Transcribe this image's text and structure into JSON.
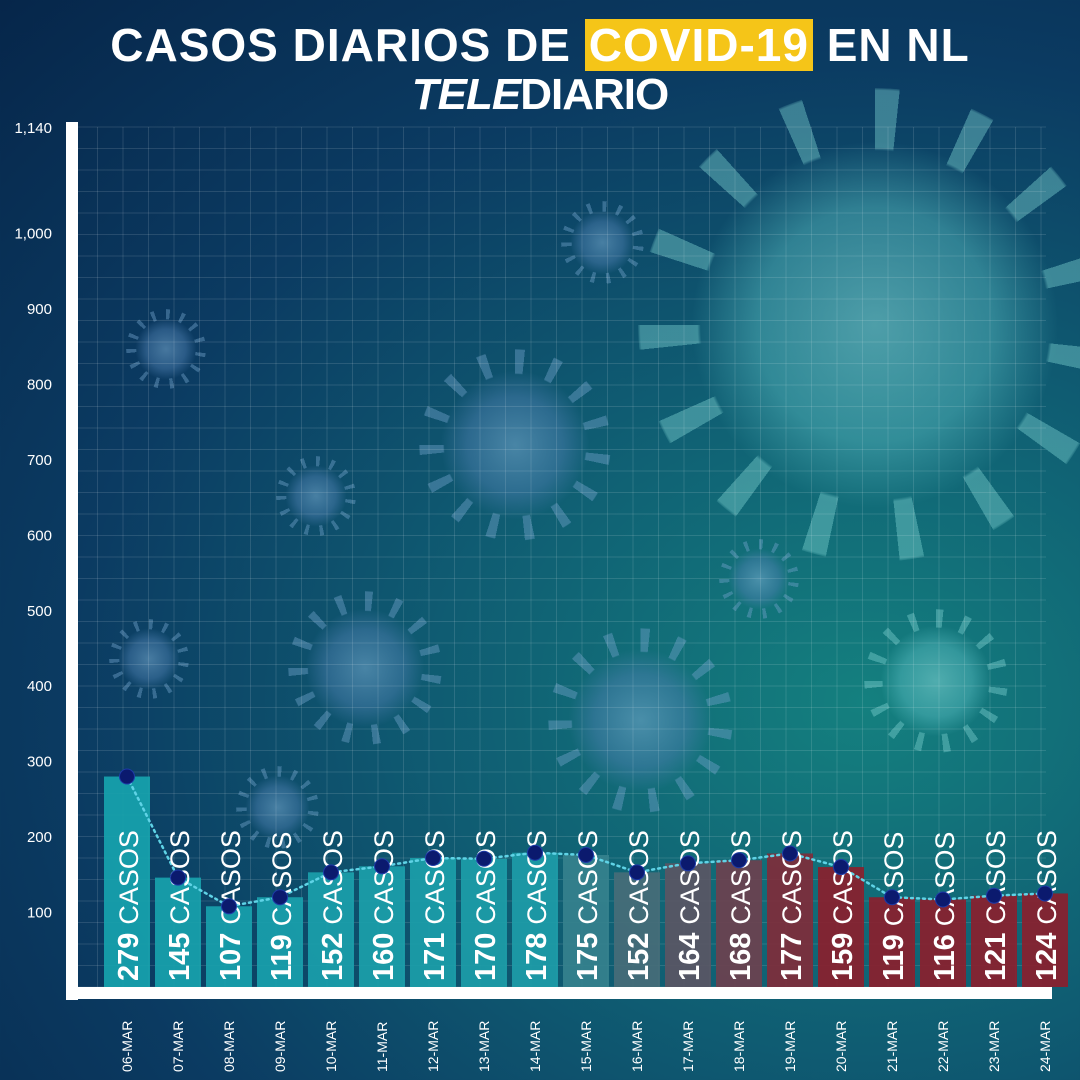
{
  "header": {
    "title_pre": "CASOS DIARIOS DE ",
    "title_highlight": "COVID-19",
    "title_post": " EN NL",
    "brand_part1": "TELE",
    "brand_part2": "DIARIO"
  },
  "colors": {
    "highlight": "#f5c518",
    "bar_teal": "#17a3ae",
    "bar_dark_red": "#8a1f2e",
    "point": "#0b1a6e",
    "trend_line": "#5fd3e6"
  },
  "chart_data": {
    "type": "bar",
    "categories": [
      "06-MAR",
      "07-MAR",
      "08-MAR",
      "09-MAR",
      "10-MAR",
      "11-MAR",
      "12-MAR",
      "13-MAR",
      "14-MAR",
      "15-MAR",
      "16-MAR",
      "17-MAR",
      "18-MAR",
      "19-MAR",
      "20-MAR",
      "21-MAR",
      "22-MAR",
      "23-MAR",
      "24-MAR"
    ],
    "values": [
      279,
      145,
      107,
      119,
      152,
      160,
      171,
      170,
      178,
      175,
      152,
      164,
      168,
      177,
      159,
      119,
      116,
      121,
      124
    ],
    "value_suffix": "CASOS",
    "yticks": [
      {
        "value": 100,
        "label": "100"
      },
      {
        "value": 200,
        "label": "200"
      },
      {
        "value": 300,
        "label": "300"
      },
      {
        "value": 400,
        "label": "400"
      },
      {
        "value": 500,
        "label": "500"
      },
      {
        "value": 600,
        "label": "600"
      },
      {
        "value": 700,
        "label": "700"
      },
      {
        "value": 800,
        "label": "800"
      },
      {
        "value": 900,
        "label": "900"
      },
      {
        "value": 1000,
        "label": "1,000"
      },
      {
        "value": 1140,
        "label": "1,140"
      }
    ],
    "ylim": [
      0,
      1140
    ],
    "grid": true,
    "trend_line": true
  }
}
